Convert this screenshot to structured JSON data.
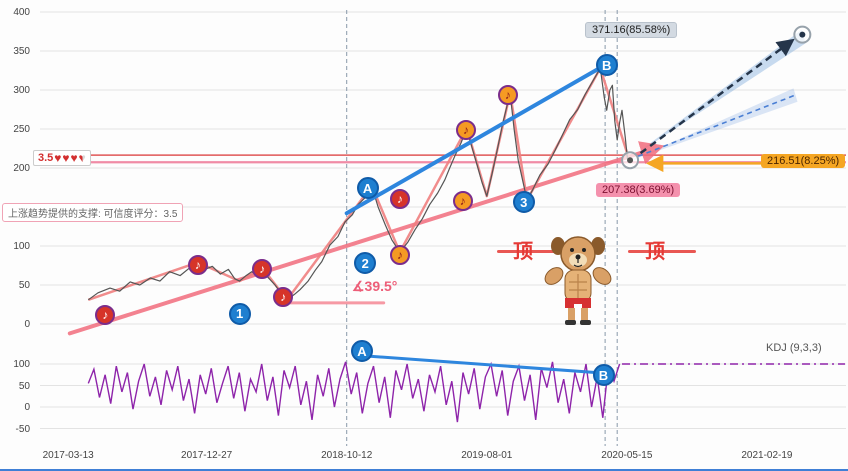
{
  "colors": {
    "accent_blue": "#2e86de",
    "salmon": "#f08080",
    "support_pink": "#f26d7d",
    "price_gray": "#555555",
    "kdj_purple": "#8e24aa",
    "navy": "#25354a",
    "orange": "#f5a623",
    "red_level": "#e05656",
    "pink_level": "#f08ca6",
    "grid": "#e3e3e3",
    "vline": "#8899aa"
  },
  "annotations": {
    "angle_label": "∡39.5°",
    "tooltip": "上涨趋势提供的支撑: 可信度评分：3.5",
    "rating_score": "3.5",
    "kdj_label": "KDJ (9,3,3)",
    "top_label": "顶",
    "badges": {
      "target": "371.16(85.58%)",
      "level": "216.51(8.25%)",
      "current": "207.38(3.69%)"
    }
  },
  "markers": {
    "main": [
      {
        "type": "red-note",
        "glyph": "♪",
        "xf": 0.081,
        "v": 12
      },
      {
        "type": "red-note",
        "glyph": "♪",
        "xf": 0.196,
        "v": 76
      },
      {
        "type": "red-note",
        "glyph": "♪",
        "xf": 0.276,
        "v": 71
      },
      {
        "type": "red-note",
        "glyph": "♪",
        "xf": 0.302,
        "v": 35
      },
      {
        "type": "red-note",
        "glyph": "♪",
        "xf": 0.447,
        "v": 160
      },
      {
        "type": "orange-note",
        "glyph": "♪",
        "xf": 0.447,
        "v": 88
      },
      {
        "type": "orange-note",
        "glyph": "♪",
        "xf": 0.525,
        "v": 158
      },
      {
        "type": "orange-note",
        "glyph": "♪",
        "xf": 0.529,
        "v": 249
      },
      {
        "type": "orange-note",
        "glyph": "♪",
        "xf": 0.581,
        "v": 294
      },
      {
        "type": "wave-number",
        "glyph": "1",
        "xf": 0.248,
        "v": 13
      },
      {
        "type": "wave-number",
        "glyph": "2",
        "xf": 0.404,
        "v": 78
      },
      {
        "type": "wave-number",
        "glyph": "3",
        "xf": 0.601,
        "v": 156
      },
      {
        "type": "wave-letter",
        "glyph": "A",
        "xf": 0.407,
        "v": 174
      },
      {
        "type": "wave-letter",
        "glyph": "B",
        "xf": 0.704,
        "v": 332
      }
    ],
    "sub": [
      {
        "type": "wave-letter",
        "glyph": "A",
        "xf": 0.4,
        "v": 130
      },
      {
        "type": "wave-letter",
        "glyph": "B",
        "xf": 0.7,
        "v": 74
      }
    ]
  },
  "chart_data": {
    "type": "line",
    "x_axis": {
      "ticks": [
        {
          "label": "2017-03-13",
          "xf": 0.035
        },
        {
          "label": "2017-12-27",
          "xf": 0.207
        },
        {
          "label": "2018-10-12",
          "xf": 0.381
        },
        {
          "label": "2019-08-01",
          "xf": 0.555
        },
        {
          "label": "2020-05-15",
          "xf": 0.729
        },
        {
          "label": "2021-02-19",
          "xf": 0.903
        }
      ]
    },
    "price_panel": {
      "ylim": [
        0,
        400
      ],
      "yticks": [
        400,
        350,
        300,
        250,
        200,
        150,
        100,
        50,
        0
      ],
      "price_series": [
        [
          0.06,
          31
        ],
        [
          0.072,
          40
        ],
        [
          0.087,
          46
        ],
        [
          0.099,
          42
        ],
        [
          0.112,
          54
        ],
        [
          0.124,
          50
        ],
        [
          0.137,
          59
        ],
        [
          0.149,
          55
        ],
        [
          0.161,
          67
        ],
        [
          0.174,
          62
        ],
        [
          0.186,
          72
        ],
        [
          0.196,
          79
        ],
        [
          0.205,
          70
        ],
        [
          0.214,
          74
        ],
        [
          0.224,
          64
        ],
        [
          0.234,
          70
        ],
        [
          0.242,
          58
        ],
        [
          0.248,
          55
        ],
        [
          0.256,
          62
        ],
        [
          0.263,
          67
        ],
        [
          0.27,
          63
        ],
        [
          0.276,
          72
        ],
        [
          0.283,
          60
        ],
        [
          0.292,
          50
        ],
        [
          0.299,
          40
        ],
        [
          0.307,
          31
        ],
        [
          0.316,
          38
        ],
        [
          0.323,
          44
        ],
        [
          0.333,
          55
        ],
        [
          0.342,
          69
        ],
        [
          0.35,
          80
        ],
        [
          0.36,
          101
        ],
        [
          0.37,
          112
        ],
        [
          0.379,
          131
        ],
        [
          0.388,
          140
        ],
        [
          0.395,
          153
        ],
        [
          0.404,
          162
        ],
        [
          0.412,
          177
        ],
        [
          0.42,
          150
        ],
        [
          0.429,
          127
        ],
        [
          0.437,
          108
        ],
        [
          0.447,
          92
        ],
        [
          0.457,
          105
        ],
        [
          0.466,
          121
        ],
        [
          0.475,
          135
        ],
        [
          0.484,
          153
        ],
        [
          0.494,
          168
        ],
        [
          0.503,
          185
        ],
        [
          0.509,
          200
        ],
        [
          0.516,
          217
        ],
        [
          0.523,
          232
        ],
        [
          0.53,
          251
        ],
        [
          0.537,
          225
        ],
        [
          0.543,
          204
        ],
        [
          0.549,
          182
        ],
        [
          0.555,
          164
        ],
        [
          0.561,
          190
        ],
        [
          0.568,
          223
        ],
        [
          0.575,
          258
        ],
        [
          0.584,
          296
        ],
        [
          0.589,
          250
        ],
        [
          0.594,
          210
        ],
        [
          0.6,
          182
        ],
        [
          0.605,
          159
        ],
        [
          0.612,
          172
        ],
        [
          0.621,
          191
        ],
        [
          0.631,
          205
        ],
        [
          0.64,
          223
        ],
        [
          0.648,
          240
        ],
        [
          0.658,
          262
        ],
        [
          0.668,
          275
        ],
        [
          0.677,
          294
        ],
        [
          0.686,
          310
        ],
        [
          0.696,
          328
        ],
        [
          0.701,
          290
        ],
        [
          0.704,
          274
        ],
        [
          0.708,
          300
        ],
        [
          0.711,
          306
        ],
        [
          0.714,
          260
        ],
        [
          0.717,
          236
        ],
        [
          0.72,
          258
        ],
        [
          0.723,
          274
        ],
        [
          0.727,
          240
        ],
        [
          0.73,
          210
        ],
        [
          0.733,
          207
        ]
      ],
      "wave_zigzag": [
        [
          0.06,
          31
        ],
        [
          0.196,
          79
        ],
        [
          0.248,
          55
        ],
        [
          0.276,
          72
        ],
        [
          0.307,
          31
        ],
        [
          0.412,
          177
        ],
        [
          0.447,
          92
        ],
        [
          0.53,
          251
        ],
        [
          0.555,
          164
        ],
        [
          0.584,
          296
        ],
        [
          0.605,
          159
        ],
        [
          0.696,
          328
        ],
        [
          0.733,
          207
        ]
      ],
      "support_line": [
        [
          0.037,
          -12
        ],
        [
          0.77,
          227
        ]
      ],
      "trend_line_ab": [
        [
          0.381,
          142
        ],
        [
          0.702,
          332
        ]
      ],
      "angle_ref_line": [
        [
          0.302,
          27
        ],
        [
          0.427,
          27
        ]
      ],
      "levels": [
        {
          "value": 216.51,
          "color": "#e05656",
          "width": 1.5
        },
        {
          "value": 207.38,
          "color": "#f08ca6",
          "width": 2.2
        }
      ],
      "vlines_xf": [
        0.381,
        0.702,
        0.717
      ],
      "projection": {
        "endpoint": [
          0.733,
          210
        ],
        "target": [
          0.947,
          371
        ],
        "navy_line": [
          [
            0.746,
            219
          ],
          [
            0.934,
            363
          ]
        ],
        "mid_line": [
          [
            0.743,
            215
          ],
          [
            0.937,
            293
          ]
        ],
        "orange_arrow": [
          [
            0.898,
            206
          ],
          [
            0.757,
            206
          ]
        ],
        "beam_main": [
          [
            0.735,
            214
          ],
          [
            0.946,
            377
          ],
          [
            0.951,
            360
          ]
        ],
        "beam_mid": [
          [
            0.735,
            210
          ],
          [
            0.936,
            302
          ],
          [
            0.941,
            285
          ]
        ]
      }
    },
    "kdj_panel": {
      "ylim": [
        -50,
        100
      ],
      "yticks": [
        100,
        50,
        0,
        -50
      ],
      "x_range": [
        0.06,
        0.72
      ],
      "values": [
        55,
        88,
        22,
        75,
        8,
        95,
        35,
        80,
        -5,
        60,
        100,
        25,
        70,
        5,
        85,
        40,
        95,
        15,
        65,
        -15,
        75,
        30,
        90,
        10,
        55,
        95,
        20,
        80,
        -10,
        65,
        35,
        100,
        15,
        70,
        -20,
        85,
        45,
        95,
        5,
        60,
        -30,
        75,
        25,
        90,
        0,
        65,
        105,
        30,
        80,
        -15,
        55,
        95,
        10,
        70,
        -25,
        85,
        40,
        100,
        20,
        65,
        -10,
        75,
        35,
        95,
        5,
        60,
        -35,
        80,
        30,
        90,
        -5,
        70,
        100,
        25,
        85,
        -20,
        60,
        95,
        15,
        75,
        -30,
        90,
        45,
        105,
        10,
        65,
        -15,
        80,
        35,
        100,
        0,
        70,
        -25,
        95,
        60,
        100
      ],
      "flat_segment": {
        "value": 100,
        "x_range": [
          0.723,
          1.0
        ]
      },
      "ab_line": [
        [
          0.41,
          118
        ],
        [
          0.692,
          80
        ]
      ]
    }
  }
}
